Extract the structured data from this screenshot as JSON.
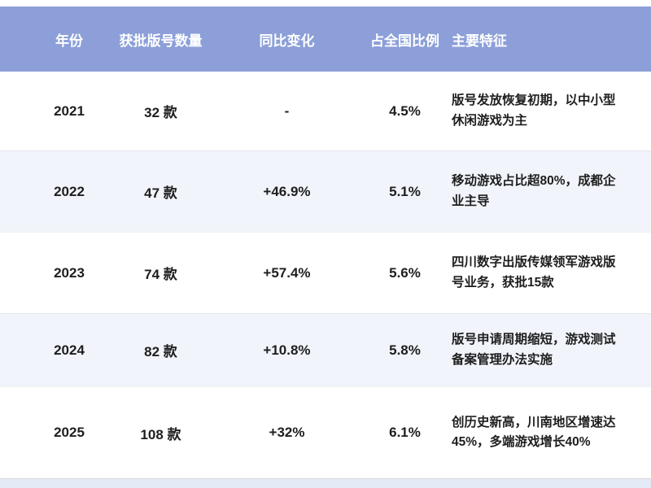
{
  "chart_data": {
    "type": "table",
    "columns": [
      "年份",
      "获批版号数量",
      "同比变化",
      "占全国比例",
      "主要特征"
    ],
    "rows": [
      {
        "year": "2021",
        "count": "32 款",
        "change": "-",
        "share": "4.5%",
        "feature": "版号发放恢复初期，以中小型休闲游戏为主"
      },
      {
        "year": "2022",
        "count": "47 款",
        "change": "+46.9%",
        "share": "5.1%",
        "feature": "移动游戏占比超80%，成都企业主导"
      },
      {
        "year": "2023",
        "count": "74 款",
        "change": "+57.4%",
        "share": "5.6%",
        "feature": "四川数字出版传媒领军游戏版号业务，获批15款"
      },
      {
        "year": "2024",
        "count": "82 款",
        "change": "+10.8%",
        "share": "5.8%",
        "feature": "版号申请周期缩短，游戏测试备案管理办法实施"
      },
      {
        "year": "2025",
        "count": "108 款",
        "change": "+32%",
        "share": "6.1%",
        "feature": "创历史新高，川南地区增速达45%，多端游戏增长40%"
      }
    ],
    "layout": {
      "header_position": "top",
      "alternating_rows": true,
      "grid": "horizontal-dividers-only"
    }
  },
  "colors": {
    "header_bg": "#8c9fd8",
    "header_text": "#ffffff",
    "row_bg": "#ffffff",
    "row_alt_bg": "#f1f4fa",
    "body_text": "#1e1e1e",
    "footer_bar": "#e4eaf6"
  }
}
